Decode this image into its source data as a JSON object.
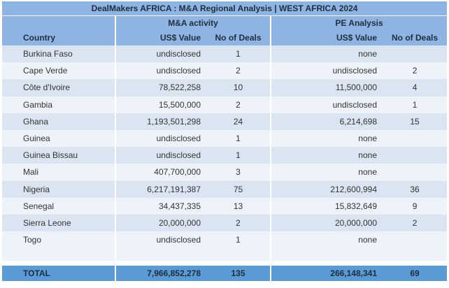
{
  "title": "DealMakers AFRICA : M&A Regional Analysis | WEST AFRICA 2024",
  "groups": {
    "ma": "M&A activity",
    "pe": "PE Analysis"
  },
  "headers": {
    "country": "Country",
    "ma_value": "US$ Value",
    "ma_deals": "No of Deals",
    "pe_value": "US$ Value",
    "pe_deals": "No of Deals"
  },
  "rows": [
    {
      "country": "Burkina Faso",
      "ma_value": "undisclosed",
      "ma_deals": "1",
      "pe_value": "none",
      "pe_deals": ""
    },
    {
      "country": "Cape Verde",
      "ma_value": "undisclosed",
      "ma_deals": "2",
      "pe_value": "undisclosed",
      "pe_deals": "2"
    },
    {
      "country": "Côte d'Ivoire",
      "ma_value": "78,522,258",
      "ma_deals": "10",
      "pe_value": "11,500,000",
      "pe_deals": "4"
    },
    {
      "country": "Gambia",
      "ma_value": "15,500,000",
      "ma_deals": "2",
      "pe_value": "undisclosed",
      "pe_deals": "1"
    },
    {
      "country": "Ghana",
      "ma_value": "1,193,501,298",
      "ma_deals": "24",
      "pe_value": "6,214,698",
      "pe_deals": "15"
    },
    {
      "country": "Guinea",
      "ma_value": "undisclosed",
      "ma_deals": "1",
      "pe_value": "none",
      "pe_deals": ""
    },
    {
      "country": "Guinea Bissau",
      "ma_value": "undisclosed",
      "ma_deals": "1",
      "pe_value": "none",
      "pe_deals": ""
    },
    {
      "country": "Mali",
      "ma_value": "407,700,000",
      "ma_deals": "3",
      "pe_value": "none",
      "pe_deals": ""
    },
    {
      "country": "Nigeria",
      "ma_value": "6,217,191,387",
      "ma_deals": "75",
      "pe_value": "212,600,994",
      "pe_deals": "36"
    },
    {
      "country": "Senegal",
      "ma_value": "34,437,335",
      "ma_deals": "13",
      "pe_value": "15,832,649",
      "pe_deals": "9"
    },
    {
      "country": "Sierra Leone",
      "ma_value": "20,000,000",
      "ma_deals": "2",
      "pe_value": "20,000,000",
      "pe_deals": "2"
    },
    {
      "country": "Togo",
      "ma_value": "undisclosed",
      "ma_deals": "1",
      "pe_value": "none",
      "pe_deals": ""
    }
  ],
  "total": {
    "label": "TOTAL",
    "ma_value": "7,966,852,278",
    "ma_deals": "135",
    "pe_value": "266,148,341",
    "pe_deals": "69"
  }
}
